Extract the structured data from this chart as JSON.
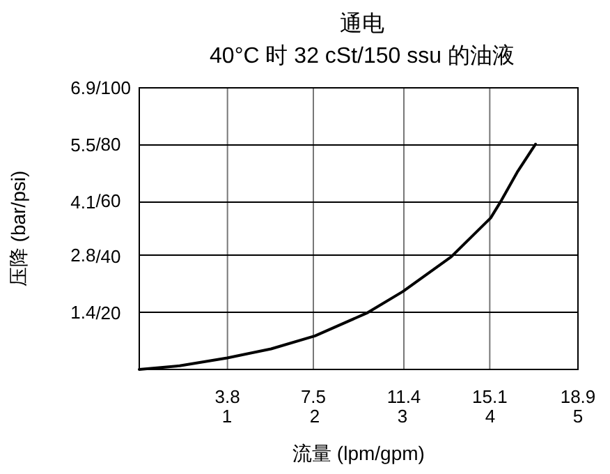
{
  "chart_data": {
    "type": "line",
    "title": "通电",
    "subtitle": "40°C 时 32 cSt/150 ssu 的油液",
    "xlabel": "流量 (lpm/gpm)",
    "ylabel": "压降 (bar/psi)",
    "xlim": [
      0,
      18.9
    ],
    "xticks": [
      3.8,
      7.5,
      11.4,
      15.1,
      18.9
    ],
    "x2lim": [
      0,
      5
    ],
    "x2ticks": [
      1,
      2,
      3,
      4,
      5
    ],
    "ylim": [
      0,
      6.9
    ],
    "yticks": [
      1.4,
      2.8,
      4.1,
      5.5,
      6.9
    ],
    "y2lim": [
      0,
      100
    ],
    "y2ticks": [
      {
        "value": 20,
        "label": "/20"
      },
      {
        "value": 40,
        "label": "/40"
      },
      {
        "value": 60,
        "label": "/60"
      },
      {
        "value": 80,
        "label": "/80"
      },
      {
        "value": 100,
        "label": "/100"
      }
    ],
    "grid": true,
    "marker": "none",
    "line_style": "solid",
    "series": [
      {
        "color": "#000000",
        "axis": "y2",
        "x": [
          0,
          1.74,
          3.79,
          5.68,
          7.57,
          9.8,
          11.36,
          13.44,
          15.14,
          15.6,
          16.28,
          17.07
        ],
        "values": [
          0,
          1.3,
          4.1,
          7.3,
          11.9,
          20,
          27.7,
          40,
          53.8,
          60,
          70,
          80
        ]
      }
    ]
  }
}
